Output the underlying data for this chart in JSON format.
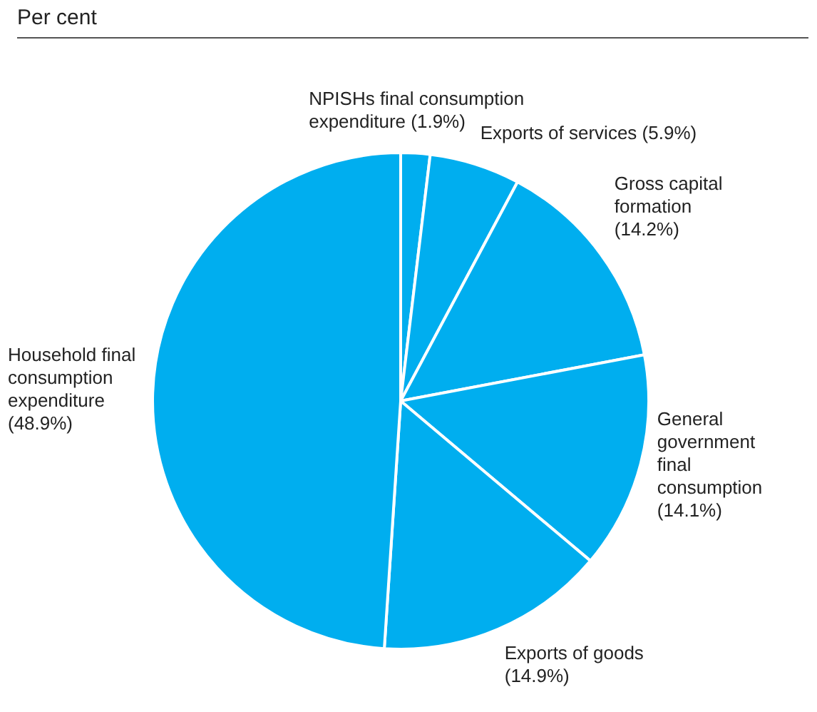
{
  "chart_data": {
    "type": "pie",
    "title": "Per cent",
    "categories": [
      "NPISHs final consumption expenditure",
      "Exports of services",
      "Gross capital formation",
      "General government final consumption",
      "Exports of goods",
      "Household final consumption expenditure"
    ],
    "values": [
      1.9,
      5.9,
      14.2,
      14.1,
      14.9,
      48.9
    ],
    "value_labels": [
      "(1.9%)",
      "(5.9%)",
      "(14.2%)",
      "(14.1%)",
      "(14.9%)",
      "(48.9%)"
    ],
    "colors": [
      "#00aeef",
      "#00aeef",
      "#00aeef",
      "#00aeef",
      "#00aeef",
      "#00aeef"
    ],
    "legend": false
  }
}
